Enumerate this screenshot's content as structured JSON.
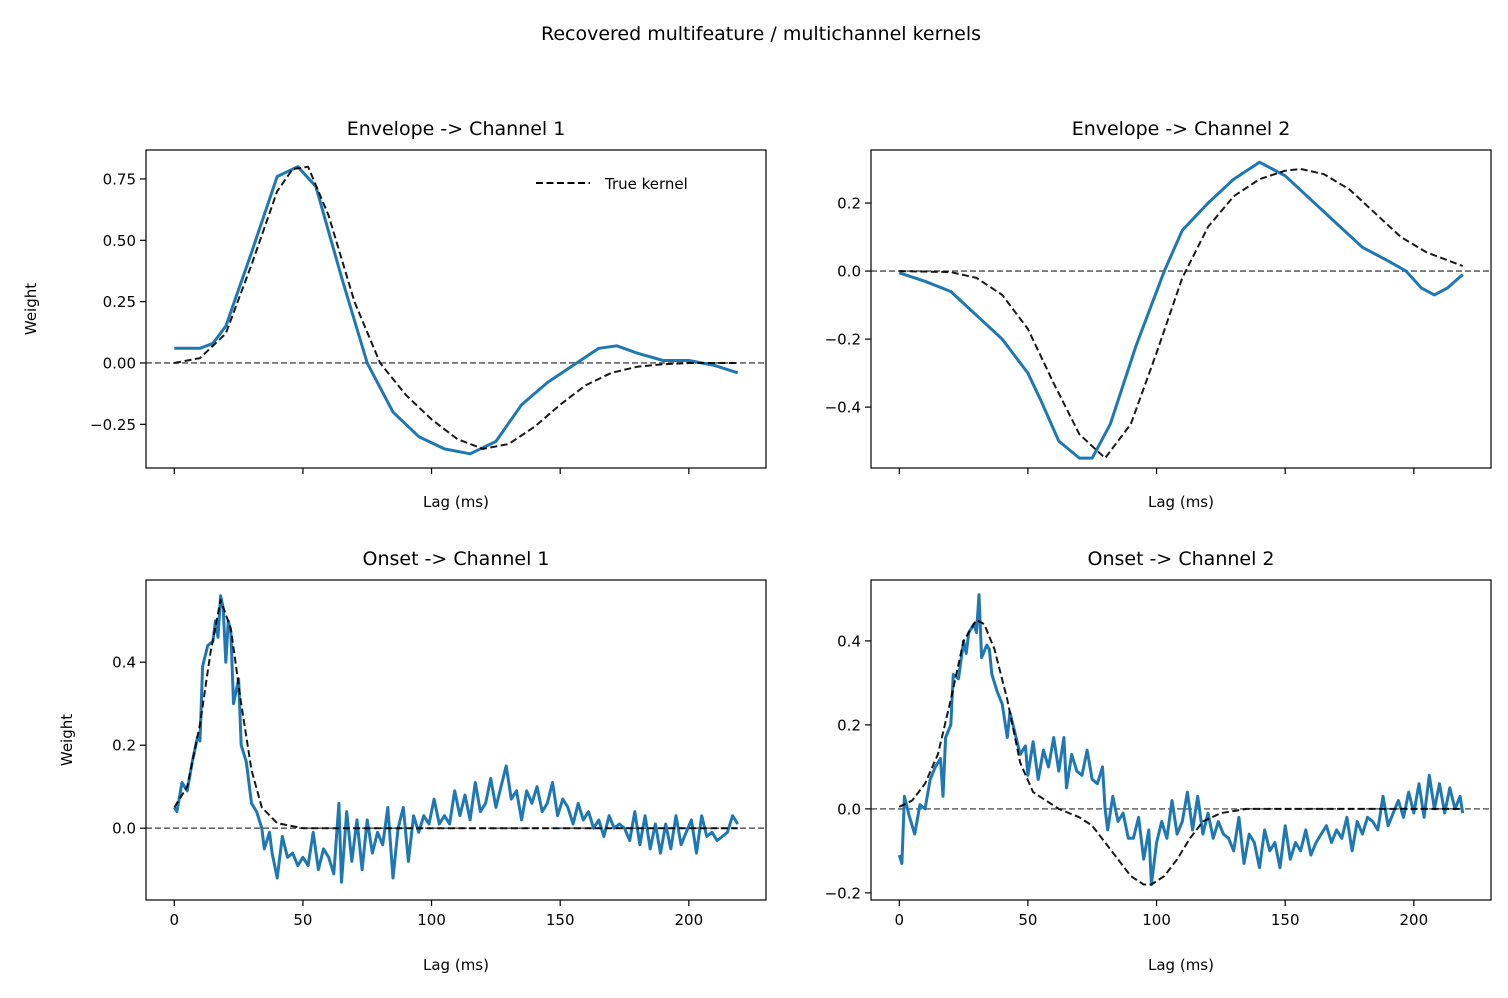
{
  "figure": {
    "suptitle": "Recovered multifeature / multichannel kernels"
  },
  "colors": {
    "estimate": "#1f77b4",
    "true_kernel": "#000000",
    "zero_line": "#666666"
  },
  "chart_data": [
    {
      "type": "line",
      "title": "Envelope -> Channel 1",
      "xlabel": "Lag (ms)",
      "ylabel": "Weight",
      "xlim": [
        -11,
        230
      ],
      "ylim": [
        -0.428,
        0.868
      ],
      "xticks": [
        0,
        50,
        100,
        150,
        200
      ],
      "xtick_labels_visible": false,
      "yticks": [
        -0.25,
        0,
        0.25,
        0.5,
        0.75
      ],
      "ytick_labels": [
        "−0.25",
        "0.00",
        "0.25",
        "0.50",
        "0.75"
      ],
      "legend": {
        "position": "top-right",
        "entries": [
          "True kernel"
        ]
      },
      "zero_line": true,
      "grid": false,
      "series": [
        {
          "role": "estimate",
          "style": "solid",
          "x": [
            0,
            10,
            15,
            20,
            30,
            40,
            48,
            55,
            65,
            75,
            85,
            95,
            105,
            115,
            125,
            135,
            145,
            155,
            165,
            172,
            180,
            190,
            200,
            210,
            219
          ],
          "y": [
            0.06,
            0.06,
            0.08,
            0.15,
            0.45,
            0.76,
            0.8,
            0.72,
            0.35,
            0.0,
            -0.2,
            -0.3,
            -0.35,
            -0.37,
            -0.32,
            -0.17,
            -0.08,
            -0.01,
            0.06,
            0.07,
            0.04,
            0.01,
            0.01,
            -0.01,
            -0.04
          ]
        },
        {
          "name": "True kernel",
          "role": "true",
          "style": "dashed",
          "x": [
            0,
            10,
            20,
            30,
            40,
            46,
            52,
            60,
            70,
            80,
            90,
            100,
            110,
            120,
            130,
            140,
            150,
            160,
            170,
            180,
            190,
            200,
            219
          ],
          "y": [
            0,
            0.02,
            0.12,
            0.4,
            0.7,
            0.79,
            0.8,
            0.6,
            0.25,
            0.0,
            -0.13,
            -0.23,
            -0.31,
            -0.35,
            -0.33,
            -0.26,
            -0.17,
            -0.09,
            -0.04,
            -0.015,
            -0.005,
            0,
            0
          ]
        }
      ]
    },
    {
      "type": "line",
      "title": "Envelope -> Channel 2",
      "xlabel": "Lag (ms)",
      "ylabel": "",
      "xlim": [
        -11,
        230
      ],
      "ylim": [
        -0.579,
        0.356
      ],
      "xticks": [
        0,
        50,
        100,
        150,
        200
      ],
      "xtick_labels_visible": false,
      "yticks": [
        -0.4,
        -0.2,
        0,
        0.2
      ],
      "ytick_labels": [
        "−0.4",
        "−0.2",
        "0.0",
        "0.2"
      ],
      "zero_line": true,
      "grid": false,
      "series": [
        {
          "role": "estimate",
          "style": "solid",
          "x": [
            0,
            10,
            20,
            30,
            40,
            50,
            55,
            62,
            70,
            75,
            82,
            92,
            103,
            110,
            120,
            130,
            140,
            150,
            160,
            170,
            180,
            190,
            197,
            203,
            208,
            213,
            219
          ],
          "y": [
            -0.005,
            -0.03,
            -0.06,
            -0.13,
            -0.2,
            -0.3,
            -0.38,
            -0.5,
            -0.55,
            -0.55,
            -0.45,
            -0.22,
            0,
            0.12,
            0.2,
            0.27,
            0.32,
            0.28,
            0.21,
            0.14,
            0.07,
            0.03,
            0,
            -0.05,
            -0.07,
            -0.05,
            -0.01
          ]
        },
        {
          "name": "True kernel",
          "role": "true",
          "style": "dashed",
          "x": [
            0,
            20,
            30,
            40,
            50,
            60,
            70,
            80,
            90,
            100,
            110,
            120,
            130,
            140,
            150,
            156,
            165,
            175,
            185,
            195,
            205,
            219
          ],
          "y": [
            0,
            -0.003,
            -0.02,
            -0.07,
            -0.17,
            -0.33,
            -0.48,
            -0.55,
            -0.45,
            -0.24,
            -0.02,
            0.13,
            0.22,
            0.27,
            0.295,
            0.3,
            0.285,
            0.24,
            0.17,
            0.1,
            0.055,
            0.015
          ]
        }
      ]
    },
    {
      "type": "line",
      "title": "Onset -> Channel 1",
      "xlabel": "Lag (ms)",
      "ylabel": "Weight",
      "xlim": [
        -11,
        230
      ],
      "ylim": [
        -0.173,
        0.598
      ],
      "xticks": [
        0,
        50,
        100,
        150,
        200
      ],
      "xtick_labels_visible": true,
      "xtick_labels": [
        "0",
        "50",
        "100",
        "150",
        "200"
      ],
      "yticks": [
        0,
        0.2,
        0.4
      ],
      "ytick_labels": [
        "0.0",
        "0.2",
        "0.4"
      ],
      "zero_line": true,
      "grid": false,
      "series": [
        {
          "role": "estimate",
          "style": "solid",
          "x": [
            0,
            1,
            3,
            5,
            7,
            9,
            10,
            11,
            13,
            15,
            16,
            17,
            18,
            19,
            20,
            21,
            22,
            23,
            25,
            26,
            28,
            30,
            32,
            34,
            35,
            37,
            38,
            40,
            42,
            44,
            46,
            48,
            50,
            52,
            54,
            56,
            58,
            60,
            62,
            64,
            65,
            67,
            69,
            71,
            73,
            75,
            77,
            79,
            81,
            83,
            85,
            87,
            89,
            91,
            93,
            95,
            97,
            99,
            101,
            103,
            105,
            107,
            109,
            111,
            113,
            115,
            117,
            119,
            121,
            123,
            125,
            127,
            129,
            131,
            133,
            135,
            137,
            139,
            141,
            143,
            145,
            147,
            149,
            151,
            153,
            155,
            157,
            159,
            161,
            163,
            165,
            167,
            169,
            171,
            173,
            175,
            177,
            179,
            181,
            183,
            185,
            187,
            189,
            191,
            193,
            195,
            197,
            199,
            201,
            203,
            205,
            207,
            209,
            211,
            213,
            215,
            217,
            219
          ],
          "y": [
            0.05,
            0.04,
            0.11,
            0.09,
            0.16,
            0.22,
            0.21,
            0.39,
            0.44,
            0.45,
            0.5,
            0.46,
            0.56,
            0.53,
            0.4,
            0.5,
            0.47,
            0.3,
            0.36,
            0.2,
            0.16,
            0.06,
            0.04,
            0.0,
            -0.05,
            -0.01,
            -0.06,
            -0.12,
            -0.02,
            -0.07,
            -0.06,
            -0.09,
            -0.07,
            -0.09,
            -0.01,
            -0.1,
            -0.05,
            -0.07,
            -0.11,
            0.06,
            -0.13,
            0.04,
            -0.08,
            0.02,
            -0.1,
            0.02,
            -0.06,
            -0.01,
            -0.04,
            0.05,
            -0.12,
            0.0,
            0.05,
            -0.08,
            0.03,
            -0.01,
            0.03,
            0.01,
            0.07,
            0.01,
            0.03,
            0.01,
            0.09,
            0.03,
            0.08,
            0.02,
            0.11,
            0.04,
            0.06,
            0.12,
            0.05,
            0.1,
            0.15,
            0.07,
            0.09,
            0.02,
            0.09,
            0.06,
            0.1,
            0.04,
            0.06,
            0.11,
            0.03,
            0.07,
            0.05,
            0.01,
            0.06,
            0.02,
            0.04,
            0.0,
            0.02,
            -0.02,
            0.03,
            0.0,
            0.01,
            0.0,
            -0.03,
            0.04,
            -0.04,
            0.03,
            -0.05,
            0.01,
            -0.06,
            0.01,
            -0.05,
            0.03,
            -0.04,
            -0.01,
            0.02,
            -0.06,
            0.03,
            -0.02,
            -0.01,
            -0.03,
            -0.02,
            -0.01,
            0.03,
            0.01
          ]
        },
        {
          "name": "True kernel",
          "role": "true",
          "style": "dashed",
          "x": [
            0,
            5,
            10,
            14,
            18,
            22,
            26,
            30,
            34,
            40,
            50,
            219
          ],
          "y": [
            0.05,
            0.1,
            0.25,
            0.42,
            0.55,
            0.48,
            0.3,
            0.14,
            0.05,
            0.012,
            0,
            0
          ]
        }
      ]
    },
    {
      "type": "line",
      "title": "Onset -> Channel 2",
      "xlabel": "Lag (ms)",
      "ylabel": "",
      "xlim": [
        -11,
        230
      ],
      "ylim": [
        -0.217,
        0.545
      ],
      "xticks": [
        0,
        50,
        100,
        150,
        200
      ],
      "xtick_labels_visible": true,
      "xtick_labels": [
        "0",
        "50",
        "100",
        "150",
        "200"
      ],
      "yticks": [
        -0.2,
        0,
        0.2,
        0.4
      ],
      "ytick_labels": [
        "−0.2",
        "0.0",
        "0.2",
        "0.4"
      ],
      "zero_line": true,
      "grid": false,
      "series": [
        {
          "role": "estimate",
          "style": "solid",
          "x": [
            0,
            1,
            2,
            4,
            6,
            8,
            10,
            12,
            14,
            16,
            17,
            18,
            20,
            21,
            23,
            25,
            26,
            27,
            29,
            30,
            31,
            32,
            34,
            35,
            36,
            38,
            40,
            42,
            43,
            45,
            47,
            49,
            50,
            52,
            54,
            56,
            58,
            60,
            62,
            64,
            65,
            67,
            69,
            71,
            73,
            75,
            77,
            79,
            80,
            81,
            83,
            85,
            87,
            89,
            91,
            93,
            95,
            97,
            98,
            100,
            102,
            104,
            106,
            108,
            110,
            112,
            114,
            116,
            118,
            120,
            122,
            124,
            126,
            128,
            130,
            132,
            134,
            136,
            138,
            140,
            142,
            144,
            146,
            148,
            150,
            152,
            154,
            156,
            158,
            160,
            162,
            164,
            166,
            168,
            170,
            172,
            174,
            176,
            178,
            180,
            182,
            184,
            186,
            188,
            190,
            192,
            194,
            196,
            198,
            200,
            202,
            204,
            206,
            208,
            210,
            212,
            214,
            216,
            218,
            219
          ],
          "y": [
            -0.11,
            -0.13,
            0.03,
            -0.02,
            -0.06,
            0.01,
            0.0,
            0.07,
            0.1,
            0.12,
            0.03,
            0.17,
            0.2,
            0.32,
            0.31,
            0.4,
            0.37,
            0.42,
            0.44,
            0.42,
            0.51,
            0.36,
            0.39,
            0.38,
            0.32,
            0.28,
            0.25,
            0.17,
            0.23,
            0.18,
            0.13,
            0.15,
            0.08,
            0.16,
            0.07,
            0.14,
            0.1,
            0.17,
            0.09,
            0.17,
            0.05,
            0.13,
            0.09,
            0.08,
            0.14,
            0.07,
            0.06,
            0.1,
            0.0,
            -0.05,
            0.03,
            -0.03,
            -0.01,
            -0.07,
            -0.07,
            -0.02,
            -0.12,
            -0.05,
            -0.18,
            -0.08,
            -0.03,
            -0.07,
            0.02,
            -0.06,
            -0.03,
            0.04,
            -0.05,
            0.03,
            -0.06,
            -0.01,
            -0.07,
            -0.03,
            -0.06,
            -0.07,
            -0.1,
            -0.02,
            -0.13,
            -0.06,
            -0.08,
            -0.14,
            -0.05,
            -0.1,
            -0.08,
            -0.14,
            -0.04,
            -0.12,
            -0.08,
            -0.1,
            -0.05,
            -0.11,
            -0.08,
            -0.06,
            -0.04,
            -0.08,
            -0.05,
            -0.07,
            -0.02,
            -0.1,
            -0.03,
            -0.06,
            -0.02,
            -0.03,
            -0.05,
            0.03,
            -0.04,
            -0.01,
            0.02,
            -0.02,
            0.04,
            -0.01,
            0.06,
            -0.02,
            0.08,
            0.0,
            0.06,
            -0.01,
            0.05,
            0.0,
            0.03,
            -0.01
          ]
        },
        {
          "name": "True kernel",
          "role": "true",
          "style": "dashed",
          "x": [
            0,
            5,
            10,
            15,
            20,
            25,
            30,
            33,
            37,
            42,
            47,
            52,
            57,
            62,
            70,
            75,
            80,
            85,
            90,
            95,
            98,
            103,
            108,
            113,
            118,
            125,
            135,
            219
          ],
          "y": [
            0.005,
            0.02,
            0.06,
            0.13,
            0.26,
            0.4,
            0.45,
            0.44,
            0.38,
            0.26,
            0.11,
            0.04,
            0.02,
            0.0,
            -0.02,
            -0.04,
            -0.08,
            -0.12,
            -0.16,
            -0.18,
            -0.18,
            -0.16,
            -0.12,
            -0.07,
            -0.03,
            -0.01,
            0,
            0
          ]
        }
      ]
    }
  ]
}
